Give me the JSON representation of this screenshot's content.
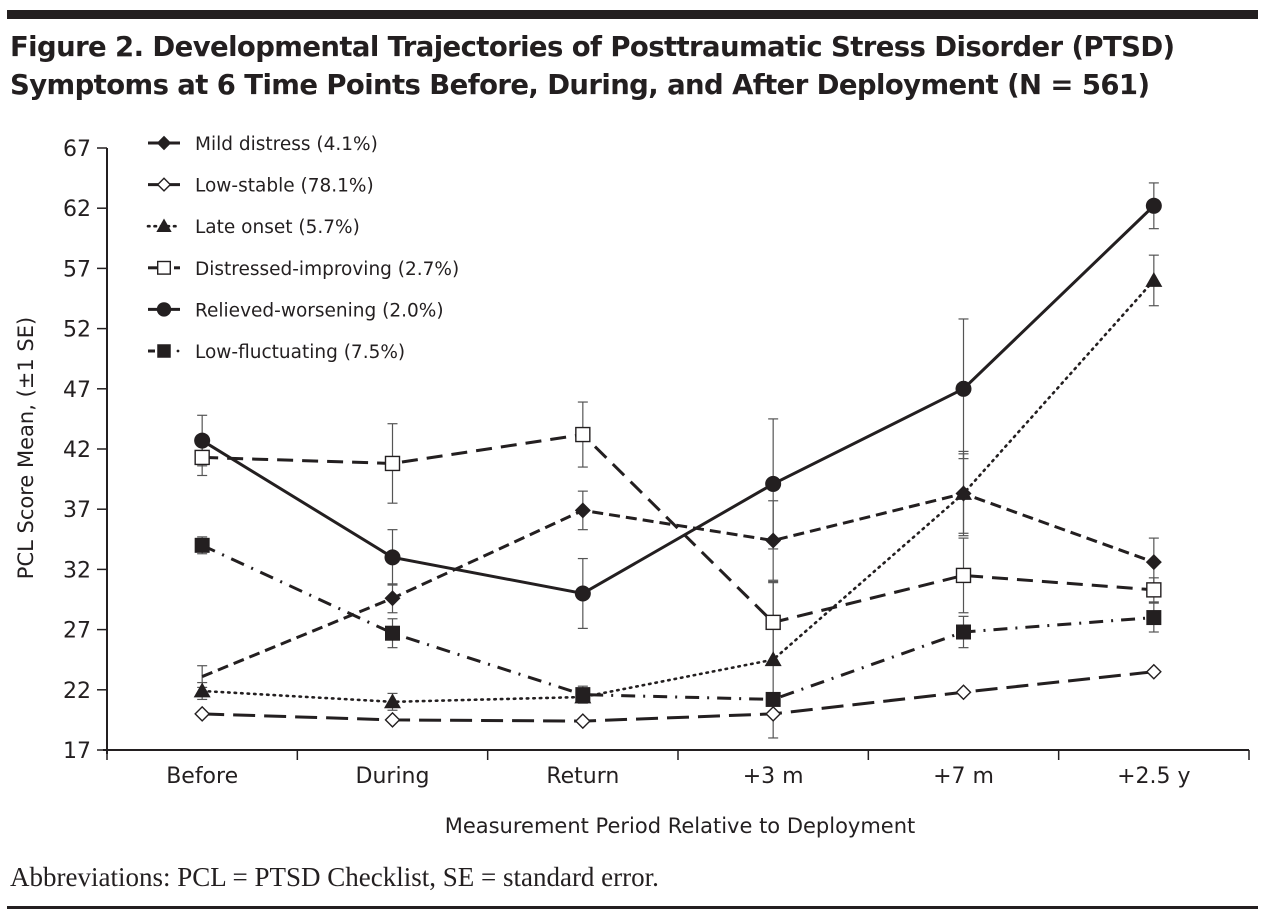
{
  "figure": {
    "title_line1": "Figure 2. Developmental Trajectories of Posttraumatic Stress Disorder (PTSD)",
    "title_line2": "Symptoms at 6 Time Points Before, During, and After Deployment (N = 561)",
    "footnote": "Abbreviations: PCL = PTSD Checklist, SE = standard error."
  },
  "chart_data": {
    "type": "line",
    "title": "Developmental Trajectories of Posttraumatic Stress Disorder (PTSD) Symptoms at 6 Time Points Before, During, and After Deployment (N = 561)",
    "xlabel": "Measurement Period Relative to Deployment",
    "ylabel": "PCL Score Mean, (±1 SE)",
    "categories": [
      "Before",
      "During",
      "Return",
      "+3 m",
      "+7 m",
      "+2.5 y"
    ],
    "yticks": [
      17,
      22,
      27,
      32,
      37,
      42,
      47,
      52,
      57,
      62,
      67
    ],
    "ylim": [
      17,
      67
    ],
    "grid": false,
    "legend_position": "top-left",
    "series": [
      {
        "name": "Mild distress (4.1%)",
        "marker": "filled-diamond",
        "line_style": "short-dash",
        "values": [
          23.1,
          29.6,
          36.9,
          34.4,
          38.3,
          32.6
        ],
        "se": [
          0.9,
          1.2,
          1.6,
          3.3,
          3.5,
          2.0
        ]
      },
      {
        "name": "Low-stable (78.1%)",
        "marker": "open-diamond",
        "line_style": "long-dash",
        "values": [
          20.0,
          19.5,
          19.4,
          20.0,
          21.8,
          23.5
        ],
        "se": [
          0.1,
          0.1,
          0.1,
          0.1,
          0.1,
          0.1
        ]
      },
      {
        "name": "Late onset (5.7%)",
        "marker": "filled-triangle",
        "line_style": "dotted",
        "values": [
          21.9,
          21.0,
          21.4,
          24.5,
          38.3,
          56.0
        ],
        "se": [
          0.7,
          0.7,
          0.5,
          6.5,
          3.3,
          2.1
        ]
      },
      {
        "name": "Distressed-improving (2.7%)",
        "marker": "open-square",
        "line_style": "dash",
        "values": [
          41.3,
          40.8,
          43.2,
          27.6,
          31.5,
          30.3
        ],
        "se": [
          1.5,
          3.3,
          2.7,
          3.3,
          3.1,
          1.0
        ]
      },
      {
        "name": "Relieved-worsening (2.0%)",
        "marker": "filled-circle",
        "line_style": "solid",
        "values": [
          42.7,
          33.0,
          30.0,
          39.1,
          47.0,
          62.2
        ],
        "se": [
          2.1,
          2.3,
          2.9,
          5.4,
          5.8,
          1.9
        ]
      },
      {
        "name": "Low-fluctuating (7.5%)",
        "marker": "filled-square",
        "line_style": "dash-dot",
        "values": [
          34.0,
          26.7,
          21.6,
          21.2,
          26.8,
          28.0
        ],
        "se": [
          0.7,
          1.2,
          0.7,
          0.5,
          1.3,
          1.2
        ]
      }
    ]
  }
}
